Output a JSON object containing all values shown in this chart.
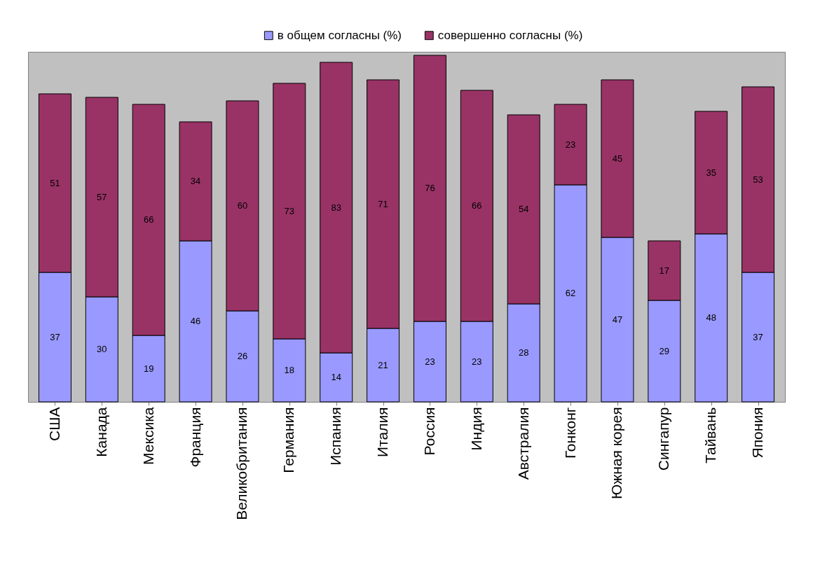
{
  "chart_data": {
    "type": "bar",
    "stacked": true,
    "data_labels": true,
    "legend": "top",
    "grid": false,
    "tick_labels": "x",
    "categories": [
      "США",
      "Канада",
      "Мексика",
      "Франция",
      "Великобритания",
      "Германия",
      "Испания",
      "Италия",
      "Россия",
      "Индия",
      "Австралия",
      "Гонконг",
      "Южная корея",
      "Сингапур",
      "Тайвань",
      "Япония"
    ],
    "series": [
      {
        "name": "в общем согласны (%)",
        "color": "#9999ff",
        "values": [
          37,
          30,
          19,
          46,
          26,
          18,
          14,
          21,
          23,
          23,
          28,
          62,
          47,
          29,
          48,
          37
        ]
      },
      {
        "name": "совершенно согласны (%)",
        "color": "#993366",
        "values": [
          51,
          57,
          66,
          34,
          60,
          73,
          83,
          71,
          76,
          66,
          54,
          23,
          45,
          17,
          35,
          53
        ]
      }
    ]
  }
}
